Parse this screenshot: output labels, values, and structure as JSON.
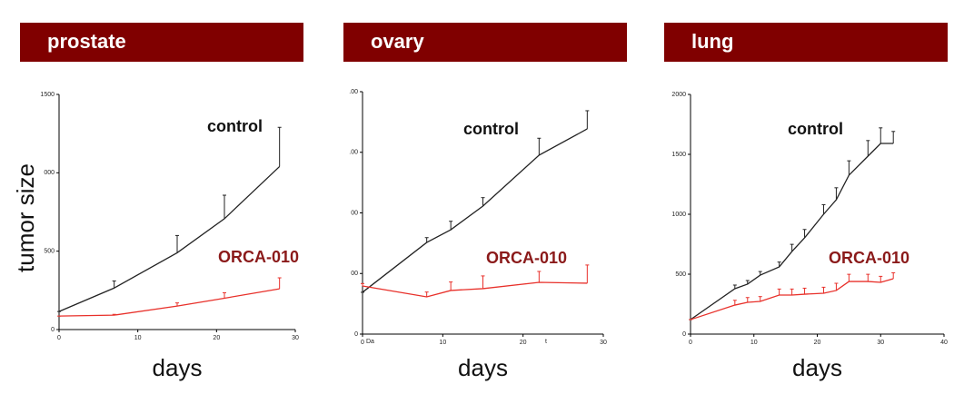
{
  "chart_data": [
    {
      "type": "line",
      "title": "prostate",
      "x_label": "days",
      "y_label": "tumor size",
      "x": [
        0,
        7,
        15,
        21,
        28
      ],
      "xlim": [
        0,
        30
      ],
      "xticks": [
        0,
        10,
        20,
        30
      ],
      "ylim": [
        0,
        1500
      ],
      "yticks": [
        0,
        500,
        {
          "value": 1000,
          "label": "000"
        },
        1500
      ],
      "series": [
        {
          "name": "control",
          "color": "#222222",
          "values": [
            115,
            265,
            490,
            707,
            1040
          ],
          "errors": [
            0,
            45,
            110,
            150,
            250
          ]
        },
        {
          "name": "ORCA-010",
          "color": "#e8302a",
          "values": [
            86,
            92,
            150,
            200,
            260
          ],
          "errors": [
            0,
            5,
            20,
            35,
            70
          ]
        }
      ]
    },
    {
      "type": "line",
      "title": "ovary",
      "x_label": "days",
      "annotations": [
        "Da",
        "t"
      ],
      "x": [
        0,
        8,
        11,
        15,
        22,
        28
      ],
      "xlim": [
        0,
        30
      ],
      "xticks": [
        0,
        10,
        20,
        30
      ],
      "ylim": [
        0,
        2000
      ],
      "yticks": [
        0,
        {
          "value": 500,
          "label": "00"
        },
        {
          "value": 1000,
          "label": "00"
        },
        {
          "value": 1500,
          "label": ".00"
        },
        {
          "value": 2000,
          "label": ".00"
        }
      ],
      "series": [
        {
          "name": "control",
          "color": "#222222",
          "values": [
            345,
            756,
            861,
            1056,
            1476,
            1693
          ],
          "errors": [
            0,
            40,
            70,
            70,
            140,
            150
          ]
        },
        {
          "name": "ORCA-010",
          "color": "#e8302a",
          "values": [
            397,
            307,
            360,
            375,
            427,
            420
          ],
          "errors": [
            20,
            40,
            70,
            105,
            90,
            150
          ]
        }
      ]
    },
    {
      "type": "line",
      "title": "lung",
      "x_label": "days",
      "x": [
        0,
        7,
        9,
        11,
        14,
        16,
        18,
        21,
        23,
        25,
        28,
        30,
        32
      ],
      "xlim": [
        0,
        40
      ],
      "xticks": [
        0,
        10,
        20,
        30,
        40
      ],
      "ylim": [
        0,
        2000
      ],
      "yticks": [
        0,
        500,
        1000,
        1500,
        2000
      ],
      "series": [
        {
          "name": "control",
          "color": "#222222",
          "values": [
            121,
            379,
            417,
            492,
            561,
            689,
            803,
            1000,
            1121,
            1326,
            1485,
            1591,
            1591
          ],
          "errors": [
            0,
            30,
            30,
            30,
            40,
            60,
            70,
            80,
            100,
            120,
            130,
            130,
            100
          ]
        },
        {
          "name": "ORCA-010",
          "color": "#e8302a",
          "values": [
            121,
            242,
            265,
            273,
            326,
            326,
            333,
            341,
            364,
            439,
            439,
            432,
            462
          ],
          "errors": [
            0,
            40,
            40,
            40,
            50,
            50,
            50,
            50,
            60,
            60,
            60,
            50,
            50
          ]
        }
      ]
    }
  ]
}
